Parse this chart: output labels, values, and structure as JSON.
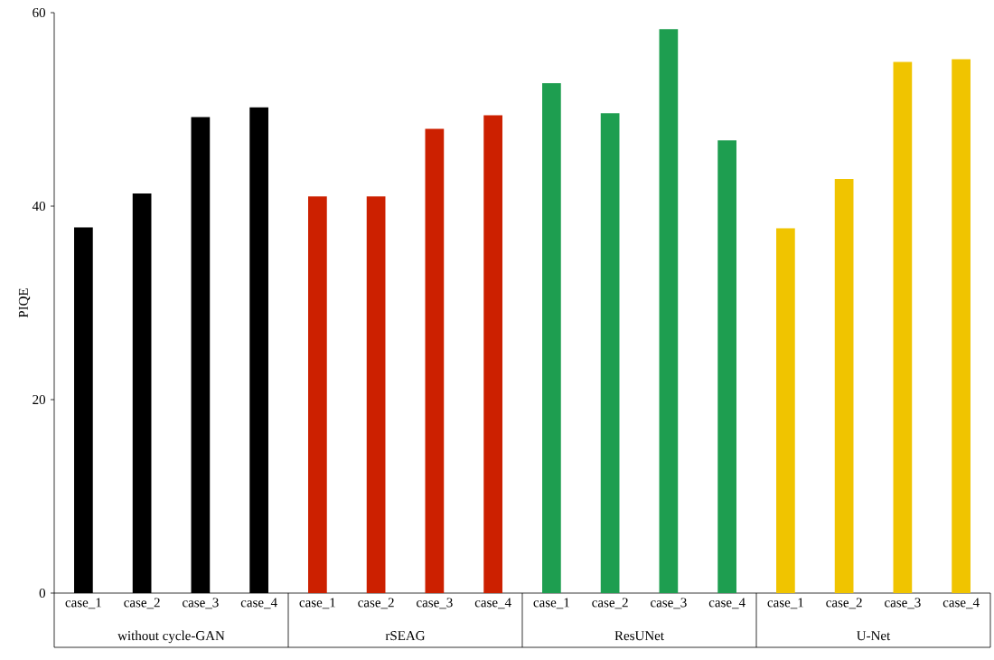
{
  "chart_data": {
    "type": "bar",
    "ylabel": "PIQE",
    "ylim": [
      0,
      60
    ],
    "yticks": [
      0,
      20,
      40,
      60
    ],
    "categories": [
      "case_1",
      "case_2",
      "case_3",
      "case_4",
      "case_1",
      "case_2",
      "case_3",
      "case_4",
      "case_1",
      "case_2",
      "case_3",
      "case_4",
      "case_1",
      "case_2",
      "case_3",
      "case_4"
    ],
    "series": [
      {
        "name": "without cycle-GAN",
        "color": "#000000",
        "values": [
          37.8,
          41.3,
          49.2,
          50.2,
          null,
          null,
          null,
          null,
          null,
          null,
          null,
          null,
          null,
          null,
          null,
          null
        ]
      },
      {
        "name": "rSEAG",
        "color": "#cc2000",
        "values": [
          null,
          null,
          null,
          null,
          41.0,
          41.0,
          48.0,
          49.4,
          null,
          null,
          null,
          null,
          null,
          null,
          null,
          null
        ]
      },
      {
        "name": "ResUNet",
        "color": "#1e9e50",
        "values": [
          null,
          null,
          null,
          null,
          null,
          null,
          null,
          null,
          52.7,
          49.6,
          58.3,
          46.8,
          null,
          null,
          null,
          null
        ]
      },
      {
        "name": "U-Net",
        "color": "#f0c400",
        "values": [
          null,
          null,
          null,
          null,
          null,
          null,
          null,
          null,
          null,
          null,
          null,
          null,
          37.7,
          42.8,
          54.9,
          55.2
        ]
      }
    ]
  }
}
